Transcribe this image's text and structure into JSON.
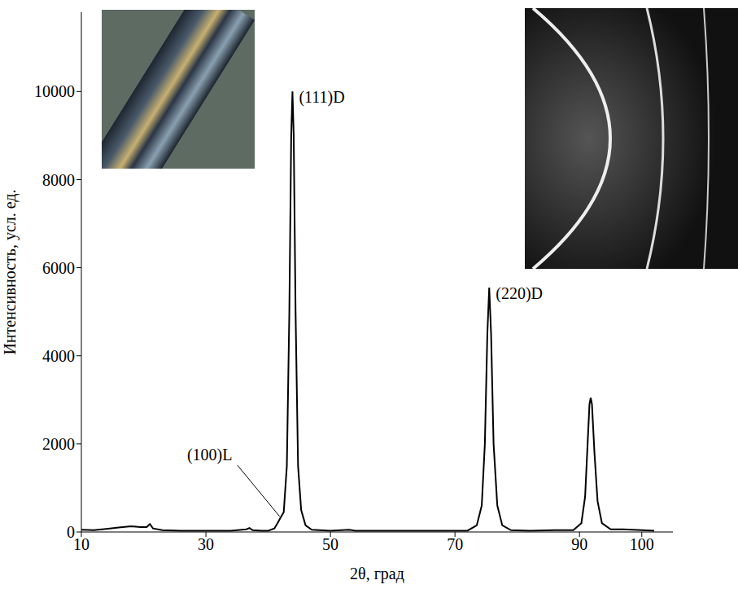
{
  "chart_data": {
    "type": "line",
    "xlabel": "2θ, град",
    "ylabel": "Интенсивность, усл. ед.",
    "xlim": [
      10,
      105
    ],
    "xticks": [
      10,
      30,
      50,
      70,
      90,
      100
    ],
    "ylim": [
      0,
      11800
    ],
    "yticks": [
      0,
      2000,
      4000,
      6000,
      8000,
      10000
    ],
    "grid": false,
    "color": "#000000",
    "x": [
      10,
      12,
      14,
      16,
      18,
      19.5,
      20.5,
      21,
      21.5,
      23,
      26,
      30,
      34,
      36.5,
      37,
      37.5,
      39,
      40,
      41,
      41.5,
      42,
      42.5,
      43,
      43.4,
      43.7,
      43.9,
      44.1,
      44.4,
      44.8,
      45.3,
      46,
      47,
      50,
      53,
      54,
      60,
      65,
      70,
      72,
      73.5,
      74.3,
      74.8,
      75.2,
      75.5,
      75.8,
      76.2,
      76.8,
      77.6,
      79,
      82,
      86,
      89,
      90.3,
      90.9,
      91.3,
      91.6,
      91.8,
      92,
      92.4,
      92.9,
      93.6,
      95,
      97,
      100,
      102
    ],
    "values": [
      50,
      40,
      70,
      100,
      130,
      110,
      110,
      180,
      80,
      40,
      30,
      30,
      30,
      60,
      90,
      40,
      30,
      30,
      80,
      200,
      330,
      450,
      1500,
      5000,
      9000,
      10000,
      9000,
      5000,
      1500,
      500,
      150,
      50,
      30,
      50,
      30,
      30,
      30,
      30,
      30,
      150,
      600,
      2000,
      4500,
      5550,
      4500,
      2000,
      600,
      150,
      40,
      30,
      40,
      40,
      200,
      800,
      2000,
      2900,
      3050,
      2900,
      1800,
      700,
      200,
      60,
      60,
      40,
      30
    ],
    "annotations": [
      {
        "text": "(111)D",
        "x": 43.9,
        "y": 10000
      },
      {
        "text": "(220)D",
        "x": 75.5,
        "y": 5550
      },
      {
        "text": "(100)L",
        "x": 42,
        "y": 330
      }
    ]
  }
}
